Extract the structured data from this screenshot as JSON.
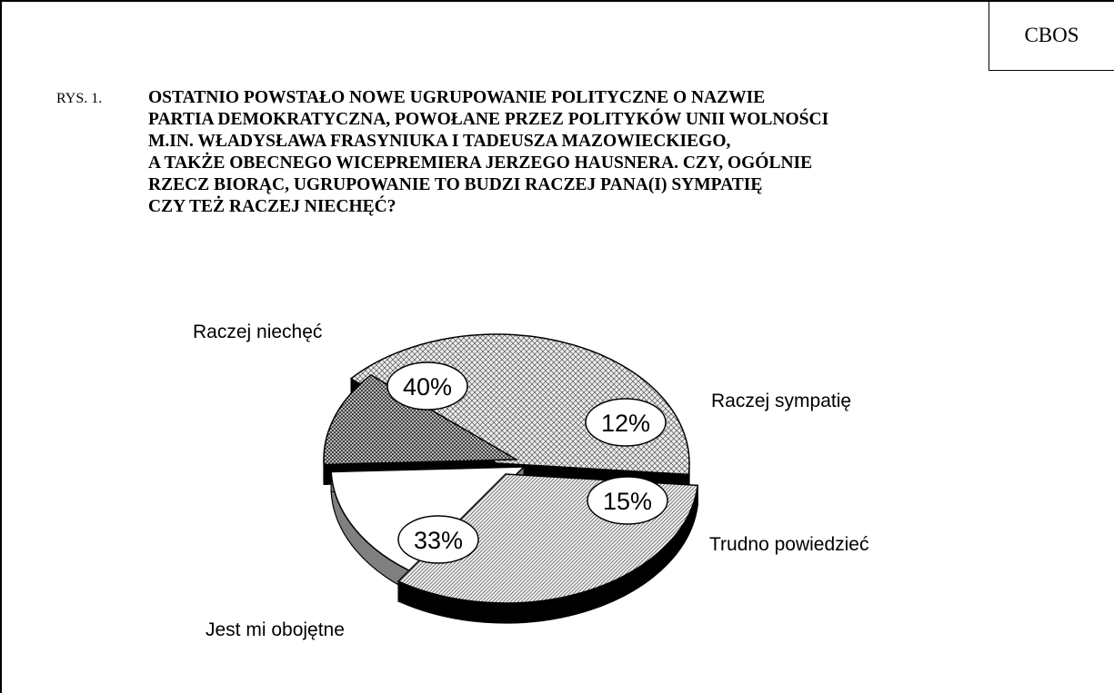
{
  "source": "CBOS",
  "figure_label": "RYS. 1.",
  "question_lines": [
    "OSTATNIO POWSTAŁO NOWE UGRUPOWANIE POLITYCZNE O NAZWIE",
    "PARTIA DEMOKRATYCZNA, POWOŁANE PRZEZ POLITYKÓW UNII WOLNOŚCI",
    "M.IN. WŁADYSŁAWA FRASYNIUKA I TADEUSZA MAZOWIECKIEGO,",
    "A TAKŻE OBECNEGO WICEPREMIERA JERZEGO HAUSNERA. CZY, OGÓLNIE",
    "RZECZ BIORĄC, UGRUPOWANIE TO BUDZI RACZEJ PANA(I) SYMPATIĘ",
    "CZY TEŻ RACZEJ NIECHĘĆ?"
  ],
  "chart_data": {
    "type": "pie",
    "style": "3d-exploded",
    "slices": [
      {
        "label": "Raczej niechęć",
        "value": 40,
        "value_label": "40%",
        "fill": "crosshatch-fine"
      },
      {
        "label": "Raczej sympatię",
        "value": 12,
        "value_label": "12%",
        "fill": "crosshatch-dense"
      },
      {
        "label": "Trudno powiedzieć",
        "value": 15,
        "value_label": "15%",
        "fill": "white"
      },
      {
        "label": "Jest mi obojętne",
        "value": 33,
        "value_label": "33%",
        "fill": "diagonal-hatch"
      }
    ],
    "colors": {
      "outline": "#000000",
      "side": "#000000",
      "white_side": "#808080"
    }
  }
}
